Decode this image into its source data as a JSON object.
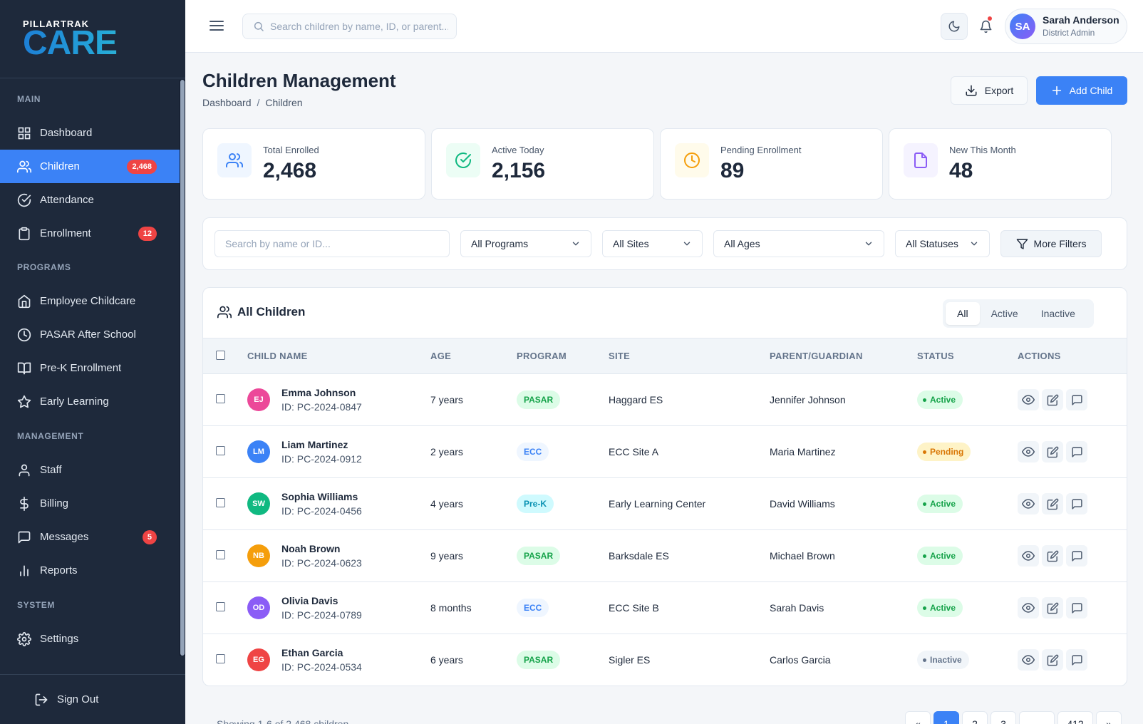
{
  "brand": {
    "top": "PILLARTRAK",
    "main": "CARE"
  },
  "sidebar": {
    "sections": [
      {
        "label": "MAIN",
        "items": [
          {
            "label": "Dashboard",
            "icon": "grid-icon"
          },
          {
            "label": "Children",
            "icon": "users-icon",
            "badge": "2,468",
            "active": true
          },
          {
            "label": "Attendance",
            "icon": "check-circle-icon"
          },
          {
            "label": "Enrollment",
            "icon": "clipboard-icon",
            "badge": "12"
          }
        ]
      },
      {
        "label": "PROGRAMS",
        "items": [
          {
            "label": "Employee Childcare",
            "icon": "home-icon"
          },
          {
            "label": "PASAR After School",
            "icon": "clock-icon"
          },
          {
            "label": "Pre-K Enrollment",
            "icon": "book-icon"
          },
          {
            "label": "Early Learning",
            "icon": "star-icon"
          }
        ]
      },
      {
        "label": "MANAGEMENT",
        "items": [
          {
            "label": "Staff",
            "icon": "user-icon"
          },
          {
            "label": "Billing",
            "icon": "dollar-icon"
          },
          {
            "label": "Messages",
            "icon": "message-icon",
            "badge": "5"
          },
          {
            "label": "Reports",
            "icon": "bar-chart-icon"
          }
        ]
      },
      {
        "label": "SYSTEM",
        "items": [
          {
            "label": "Settings",
            "icon": "gear-icon"
          }
        ]
      }
    ],
    "signout": "Sign Out"
  },
  "topbar": {
    "search_placeholder": "Search children by name, ID, or parent...",
    "user": {
      "initials": "SA",
      "name": "Sarah Anderson",
      "role": "District Admin"
    }
  },
  "page": {
    "title": "Children Management",
    "breadcrumb": [
      "Dashboard",
      "Children"
    ],
    "export_label": "Export",
    "add_label": "Add Child"
  },
  "stats": [
    {
      "label": "Total Enrolled",
      "value": "2,468",
      "color": "#3b82f6",
      "bg": "#eff6ff"
    },
    {
      "label": "Active Today",
      "value": "2,156",
      "color": "#10b981",
      "bg": "#ecfdf5"
    },
    {
      "label": "Pending Enrollment",
      "value": "89",
      "color": "#f59e0b",
      "bg": "#fffbeb"
    },
    {
      "label": "New This Month",
      "value": "48",
      "color": "#8b5cf6",
      "bg": "#f5f3ff"
    }
  ],
  "filters": {
    "search_placeholder": "Search by name or ID...",
    "programs": "All Programs",
    "sites": "All Sites",
    "ages": "All Ages",
    "statuses": "All Statuses",
    "more": "More Filters"
  },
  "table": {
    "title": "All Children",
    "tabs": [
      "All",
      "Active",
      "Inactive"
    ],
    "active_tab": "All",
    "columns": [
      "CHILD NAME",
      "AGE",
      "PROGRAM",
      "SITE",
      "PARENT/GUARDIAN",
      "STATUS",
      "ACTIONS"
    ],
    "rows": [
      {
        "initials": "EJ",
        "avatar_color": "#ec4899",
        "name": "Emma Johnson",
        "id": "ID: PC-2024-0847",
        "age": "7 years",
        "program": "PASAR",
        "site": "Haggard ES",
        "parent": "Jennifer Johnson",
        "status": "Active"
      },
      {
        "initials": "LM",
        "avatar_color": "#3b82f6",
        "name": "Liam Martinez",
        "id": "ID: PC-2024-0912",
        "age": "2 years",
        "program": "ECC",
        "site": "ECC Site A",
        "parent": "Maria Martinez",
        "status": "Pending"
      },
      {
        "initials": "SW",
        "avatar_color": "#10b981",
        "name": "Sophia Williams",
        "id": "ID: PC-2024-0456",
        "age": "4 years",
        "program": "Pre-K",
        "site": "Early Learning Center",
        "parent": "David Williams",
        "status": "Active"
      },
      {
        "initials": "NB",
        "avatar_color": "#f59e0b",
        "name": "Noah Brown",
        "id": "ID: PC-2024-0623",
        "age": "9 years",
        "program": "PASAR",
        "site": "Barksdale ES",
        "parent": "Michael Brown",
        "status": "Active"
      },
      {
        "initials": "OD",
        "avatar_color": "#8b5cf6",
        "name": "Olivia Davis",
        "id": "ID: PC-2024-0789",
        "age": "8 months",
        "program": "ECC",
        "site": "ECC Site B",
        "parent": "Sarah Davis",
        "status": "Active"
      },
      {
        "initials": "EG",
        "avatar_color": "#ef4444",
        "name": "Ethan Garcia",
        "id": "ID: PC-2024-0534",
        "age": "6 years",
        "program": "PASAR",
        "site": "Sigler ES",
        "parent": "Carlos Garcia",
        "status": "Inactive"
      }
    ]
  },
  "footer": {
    "showing": "Showing 1-6 of 2,468 children",
    "pages": [
      "«",
      "1",
      "2",
      "3",
      "...",
      "412",
      "»"
    ],
    "current_page": "1"
  },
  "colors": {
    "accent": "#3b82f6",
    "sidebar_bg": "#1e293b",
    "badge": "#ef4444",
    "program": {
      "PASAR": {
        "bg": "#dcfce7",
        "fg": "#16a34a"
      },
      "ECC": {
        "bg": "#eff6ff",
        "fg": "#3b82f6"
      },
      "Pre-K": {
        "bg": "#cffafe",
        "fg": "#0891b2"
      }
    },
    "status": {
      "Active": {
        "bg": "#dcfce7",
        "fg": "#16a34a"
      },
      "Pending": {
        "bg": "#fef3c7",
        "fg": "#d97706"
      },
      "Inactive": {
        "bg": "#f1f5f9",
        "fg": "#64748b"
      }
    }
  }
}
